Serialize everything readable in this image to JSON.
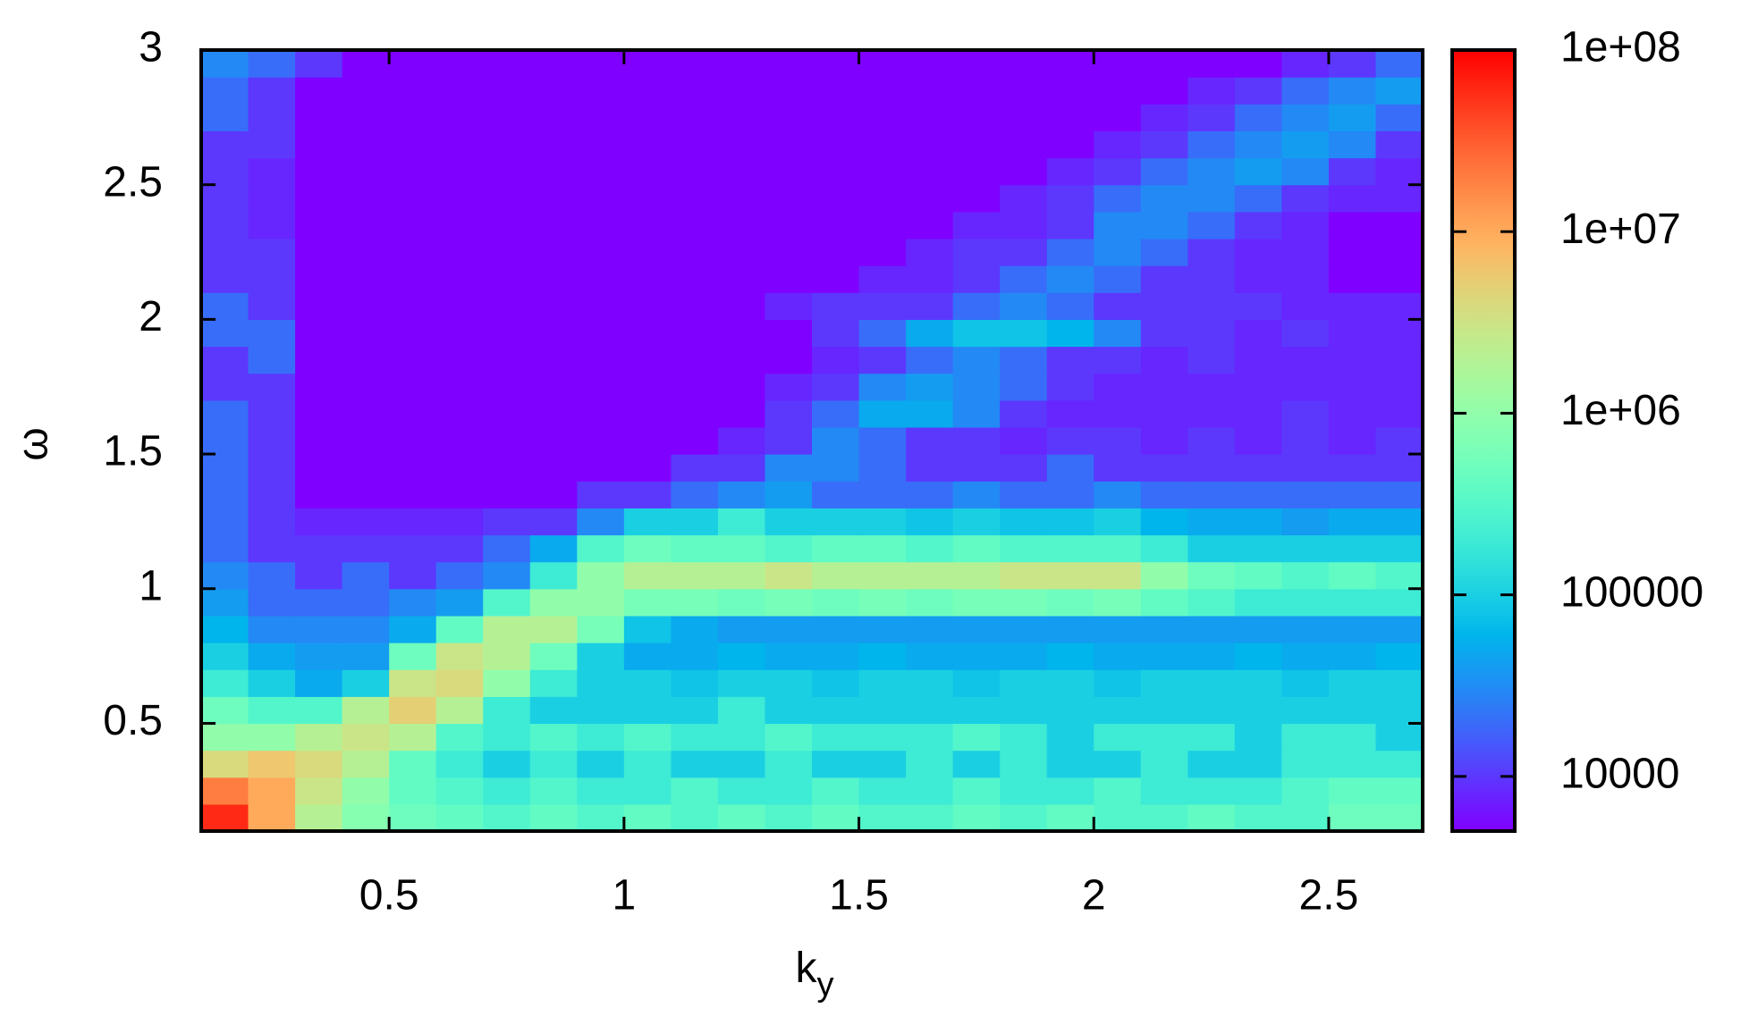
{
  "chart_data": {
    "type": "heatmap",
    "x_label": {
      "text": "k",
      "sub": "y"
    },
    "y_label": "ω",
    "xlim": [
      0.1,
      2.7
    ],
    "xticks": [
      0.5,
      1,
      1.5,
      2,
      2.5
    ],
    "ylim": [
      0.1,
      3
    ],
    "yticks": [
      0.5,
      1,
      1.5,
      2,
      2.5,
      3
    ],
    "zlim": [
      5000,
      100000000.0
    ],
    "zscale": "log",
    "zticks": [
      10000,
      100000,
      {
        "value": 1000000.0,
        "label": "1e+06"
      },
      {
        "value": 10000000.0,
        "label": "1e+07"
      },
      {
        "value": 100000000.0,
        "label": "1e+08"
      }
    ],
    "palette": "rainbow",
    "x": [
      0.15,
      0.25,
      0.35,
      0.45,
      0.55,
      0.65,
      0.75,
      0.85,
      0.95,
      1.05,
      1.15,
      1.25,
      1.35,
      1.45,
      1.55,
      1.65,
      1.75,
      1.85,
      1.95,
      2.05,
      2.15,
      2.25,
      2.35,
      2.45,
      2.55,
      2.65
    ],
    "y": [
      0.15,
      0.25,
      0.35,
      0.45,
      0.55,
      0.65,
      0.75,
      0.85,
      0.95,
      1.05,
      1.15,
      1.25,
      1.35,
      1.45,
      1.55,
      1.65,
      1.75,
      1.85,
      1.95,
      2.05,
      2.15,
      2.25,
      2.35,
      2.45,
      2.55,
      2.65,
      2.75,
      2.85,
      2.95
    ],
    "z": [
      [
        60000000.0,
        10000000.0,
        2000000.0,
        800000.0,
        500000.0,
        400000.0,
        300000.0,
        400000.0,
        300000.0,
        400000.0,
        300000.0,
        400000.0,
        300000.0,
        400000.0,
        300000.0,
        300000.0,
        400000.0,
        300000.0,
        400000.0,
        300000.0,
        300000.0,
        400000.0,
        300000.0,
        300000.0,
        500000.0,
        500000.0
      ],
      [
        20000000.0,
        10000000.0,
        3000000.0,
        1000000.0,
        400000.0,
        300000.0,
        200000.0,
        300000.0,
        200000.0,
        200000.0,
        300000.0,
        200000.0,
        200000.0,
        300000.0,
        200000.0,
        200000.0,
        300000.0,
        200000.0,
        200000.0,
        300000.0,
        200000.0,
        200000.0,
        200000.0,
        300000.0,
        400000.0,
        400000.0
      ],
      [
        4000000.0,
        6000000.0,
        4000000.0,
        2000000.0,
        400000.0,
        200000.0,
        100000.0,
        200000.0,
        100000.0,
        200000.0,
        100000.0,
        100000.0,
        200000.0,
        100000.0,
        100000.0,
        200000.0,
        100000.0,
        200000.0,
        100000.0,
        100000.0,
        200000.0,
        100000.0,
        100000.0,
        200000.0,
        200000.0,
        200000.0
      ],
      [
        1000000.0,
        1000000.0,
        2000000.0,
        3000000.0,
        2000000.0,
        300000.0,
        200000.0,
        300000.0,
        200000.0,
        300000.0,
        200000.0,
        200000.0,
        300000.0,
        200000.0,
        200000.0,
        200000.0,
        300000.0,
        200000.0,
        100000.0,
        200000.0,
        200000.0,
        200000.0,
        100000.0,
        200000.0,
        200000.0,
        100000.0
      ],
      [
        500000.0,
        300000.0,
        300000.0,
        2000000.0,
        5000000.0,
        2000000.0,
        200000.0,
        100000.0,
        100000.0,
        100000.0,
        100000.0,
        200000.0,
        100000.0,
        100000.0,
        100000.0,
        100000.0,
        100000.0,
        100000.0,
        100000.0,
        100000.0,
        100000.0,
        100000.0,
        100000.0,
        100000.0,
        100000.0,
        100000.0
      ],
      [
        200000.0,
        100000.0,
        50000.0,
        100000.0,
        3000000.0,
        4000000.0,
        1000000.0,
        200000.0,
        100000.0,
        100000.0,
        80000.0,
        100000.0,
        100000.0,
        80000.0,
        100000.0,
        100000.0,
        80000.0,
        100000.0,
        100000.0,
        80000.0,
        100000.0,
        100000.0,
        100000.0,
        80000.0,
        100000.0,
        100000.0
      ],
      [
        100000.0,
        50000.0,
        40000.0,
        40000.0,
        500000.0,
        3000000.0,
        2000000.0,
        500000.0,
        100000.0,
        50000.0,
        50000.0,
        60000.0,
        50000.0,
        50000.0,
        60000.0,
        50000.0,
        50000.0,
        50000.0,
        60000.0,
        50000.0,
        50000.0,
        50000.0,
        60000.0,
        50000.0,
        50000.0,
        60000.0
      ],
      [
        60000.0,
        30000.0,
        30000.0,
        30000.0,
        50000.0,
        400000.0,
        2000000.0,
        2000000.0,
        600000.0,
        80000.0,
        50000.0,
        40000.0,
        40000.0,
        40000.0,
        40000.0,
        40000.0,
        40000.0,
        40000.0,
        40000.0,
        40000.0,
        40000.0,
        40000.0,
        40000.0,
        40000.0,
        40000.0,
        40000.0
      ],
      [
        40000.0,
        20000.0,
        20000.0,
        20000.0,
        30000.0,
        40000.0,
        300000.0,
        1000000.0,
        1000000.0,
        600000.0,
        600000.0,
        500000.0,
        600000.0,
        500000.0,
        600000.0,
        500000.0,
        600000.0,
        600000.0,
        500000.0,
        600000.0,
        400000.0,
        300000.0,
        200000.0,
        200000.0,
        200000.0,
        200000.0
      ],
      [
        30000.0,
        20000.0,
        10000.0,
        20000.0,
        10000.0,
        20000.0,
        30000.0,
        200000.0,
        1000000.0,
        2000000.0,
        2000000.0,
        2000000.0,
        3000000.0,
        2000000.0,
        2000000.0,
        2000000.0,
        2000000.0,
        3000000.0,
        3000000.0,
        3000000.0,
        1000000.0,
        500000.0,
        400000.0,
        300000.0,
        400000.0,
        300000.0
      ],
      [
        20000.0,
        10000.0,
        10000.0,
        10000.0,
        10000.0,
        10000.0,
        20000.0,
        50000.0,
        300000.0,
        500000.0,
        400000.0,
        400000.0,
        300000.0,
        400000.0,
        400000.0,
        300000.0,
        400000.0,
        300000.0,
        300000.0,
        300000.0,
        200000.0,
        100000.0,
        100000.0,
        100000.0,
        100000.0,
        100000.0
      ],
      [
        20000.0,
        10000.0,
        8000.0,
        8000.0,
        8000.0,
        8000.0,
        10000.0,
        10000.0,
        30000.0,
        100000.0,
        100000.0,
        200000.0,
        100000.0,
        100000.0,
        100000.0,
        80000.0,
        100000.0,
        80000.0,
        80000.0,
        100000.0,
        60000.0,
        50000.0,
        50000.0,
        40000.0,
        50000.0,
        50000.0
      ],
      [
        20000.0,
        10000.0,
        5000.0,
        5000.0,
        5000.0,
        5000.0,
        5000.0,
        5000.0,
        10000.0,
        10000.0,
        20000.0,
        30000.0,
        40000.0,
        20000.0,
        20000.0,
        20000.0,
        30000.0,
        20000.0,
        20000.0,
        30000.0,
        20000.0,
        20000.0,
        20000.0,
        20000.0,
        20000.0,
        20000.0
      ],
      [
        20000.0,
        10000.0,
        5000.0,
        5000.0,
        5000.0,
        5000.0,
        5000.0,
        5000.0,
        5000.0,
        5000.0,
        10000.0,
        10000.0,
        30000.0,
        30000.0,
        20000.0,
        10000.0,
        10000.0,
        10000.0,
        20000.0,
        10000.0,
        10000.0,
        10000.0,
        10000.0,
        10000.0,
        10000.0,
        10000.0
      ],
      [
        20000.0,
        10000.0,
        5000.0,
        5000.0,
        5000.0,
        5000.0,
        5000.0,
        5000.0,
        5000.0,
        5000.0,
        5000.0,
        8000.0,
        10000.0,
        30000.0,
        20000.0,
        10000.0,
        10000.0,
        8000.0,
        10000.0,
        10000.0,
        8000.0,
        10000.0,
        8000.0,
        10000.0,
        8000.0,
        10000.0
      ],
      [
        20000.0,
        10000.0,
        5000.0,
        5000.0,
        5000.0,
        5000.0,
        5000.0,
        5000.0,
        5000.0,
        5000.0,
        5000.0,
        5000.0,
        10000.0,
        20000.0,
        50000.0,
        50000.0,
        30000.0,
        10000.0,
        8000.0,
        8000.0,
        8000.0,
        8000.0,
        8000.0,
        10000.0,
        8000.0,
        8000.0
      ],
      [
        10000.0,
        10000.0,
        5000.0,
        5000.0,
        5000.0,
        5000.0,
        5000.0,
        5000.0,
        5000.0,
        5000.0,
        5000.0,
        5000.0,
        8000.0,
        10000.0,
        30000.0,
        40000.0,
        30000.0,
        20000.0,
        10000.0,
        8000.0,
        8000.0,
        8000.0,
        8000.0,
        8000.0,
        8000.0,
        8000.0
      ],
      [
        10000.0,
        20000.0,
        5000.0,
        5000.0,
        5000.0,
        5000.0,
        5000.0,
        5000.0,
        5000.0,
        5000.0,
        5000.0,
        5000.0,
        5000.0,
        8000.0,
        10000.0,
        20000.0,
        30000.0,
        20000.0,
        10000.0,
        10000.0,
        8000.0,
        10000.0,
        8000.0,
        8000.0,
        8000.0,
        8000.0
      ],
      [
        20000.0,
        20000.0,
        5000.0,
        5000.0,
        5000.0,
        5000.0,
        5000.0,
        5000.0,
        5000.0,
        5000.0,
        5000.0,
        5000.0,
        5000.0,
        10000.0,
        20000.0,
        50000.0,
        80000.0,
        80000.0,
        60000.0,
        30000.0,
        10000.0,
        10000.0,
        8000.0,
        10000.0,
        8000.0,
        8000.0
      ],
      [
        20000.0,
        10000.0,
        5000.0,
        5000.0,
        5000.0,
        5000.0,
        5000.0,
        5000.0,
        5000.0,
        5000.0,
        5000.0,
        5000.0,
        8000.0,
        10000.0,
        10000.0,
        10000.0,
        20000.0,
        30000.0,
        20000.0,
        10000.0,
        10000.0,
        10000.0,
        10000.0,
        8000.0,
        8000.0,
        8000.0
      ],
      [
        10000.0,
        10000.0,
        5000.0,
        5000.0,
        5000.0,
        5000.0,
        5000.0,
        5000.0,
        5000.0,
        5000.0,
        5000.0,
        5000.0,
        5000.0,
        5000.0,
        8000.0,
        8000.0,
        10000.0,
        20000.0,
        30000.0,
        20000.0,
        10000.0,
        10000.0,
        8000.0,
        8000.0,
        5000.0,
        5000.0
      ],
      [
        10000.0,
        10000.0,
        5000.0,
        5000.0,
        5000.0,
        5000.0,
        5000.0,
        5000.0,
        5000.0,
        5000.0,
        5000.0,
        5000.0,
        5000.0,
        5000.0,
        5000.0,
        8000.0,
        10000.0,
        10000.0,
        20000.0,
        30000.0,
        20000.0,
        10000.0,
        8000.0,
        8000.0,
        5000.0,
        5000.0
      ],
      [
        10000.0,
        8000.0,
        5000.0,
        5000.0,
        5000.0,
        5000.0,
        5000.0,
        5000.0,
        5000.0,
        5000.0,
        5000.0,
        5000.0,
        5000.0,
        5000.0,
        5000.0,
        5000.0,
        8000.0,
        8000.0,
        10000.0,
        30000.0,
        30000.0,
        20000.0,
        10000.0,
        8000.0,
        5000.0,
        5000.0
      ],
      [
        10000.0,
        8000.0,
        5000.0,
        5000.0,
        5000.0,
        5000.0,
        5000.0,
        5000.0,
        5000.0,
        5000.0,
        5000.0,
        5000.0,
        5000.0,
        5000.0,
        5000.0,
        5000.0,
        5000.0,
        8000.0,
        10000.0,
        20000.0,
        30000.0,
        30000.0,
        20000.0,
        10000.0,
        8000.0,
        8000.0
      ],
      [
        10000.0,
        8000.0,
        5000.0,
        5000.0,
        5000.0,
        5000.0,
        5000.0,
        5000.0,
        5000.0,
        5000.0,
        5000.0,
        5000.0,
        5000.0,
        5000.0,
        5000.0,
        5000.0,
        5000.0,
        5000.0,
        8000.0,
        10000.0,
        20000.0,
        30000.0,
        40000.0,
        30000.0,
        10000.0,
        8000.0
      ],
      [
        10000.0,
        10000.0,
        5000.0,
        5000.0,
        5000.0,
        5000.0,
        5000.0,
        5000.0,
        5000.0,
        5000.0,
        5000.0,
        5000.0,
        5000.0,
        5000.0,
        5000.0,
        5000.0,
        5000.0,
        5000.0,
        5000.0,
        8000.0,
        10000.0,
        20000.0,
        30000.0,
        40000.0,
        30000.0,
        10000.0
      ],
      [
        20000.0,
        10000.0,
        5000.0,
        5000.0,
        5000.0,
        5000.0,
        5000.0,
        5000.0,
        5000.0,
        5000.0,
        5000.0,
        5000.0,
        5000.0,
        5000.0,
        5000.0,
        5000.0,
        5000.0,
        5000.0,
        5000.0,
        5000.0,
        8000.0,
        10000.0,
        20000.0,
        30000.0,
        40000.0,
        20000.0
      ],
      [
        20000.0,
        10000.0,
        5000.0,
        5000.0,
        5000.0,
        5000.0,
        5000.0,
        5000.0,
        5000.0,
        5000.0,
        5000.0,
        5000.0,
        5000.0,
        5000.0,
        5000.0,
        5000.0,
        5000.0,
        5000.0,
        5000.0,
        5000.0,
        5000.0,
        8000.0,
        10000.0,
        20000.0,
        30000.0,
        40000.0
      ],
      [
        30000.0,
        20000.0,
        10000.0,
        5000.0,
        5000.0,
        5000.0,
        5000.0,
        5000.0,
        5000.0,
        5000.0,
        5000.0,
        5000.0,
        5000.0,
        5000.0,
        5000.0,
        5000.0,
        5000.0,
        5000.0,
        5000.0,
        5000.0,
        5000.0,
        5000.0,
        5000.0,
        8000.0,
        10000.0,
        20000.0
      ]
    ]
  }
}
